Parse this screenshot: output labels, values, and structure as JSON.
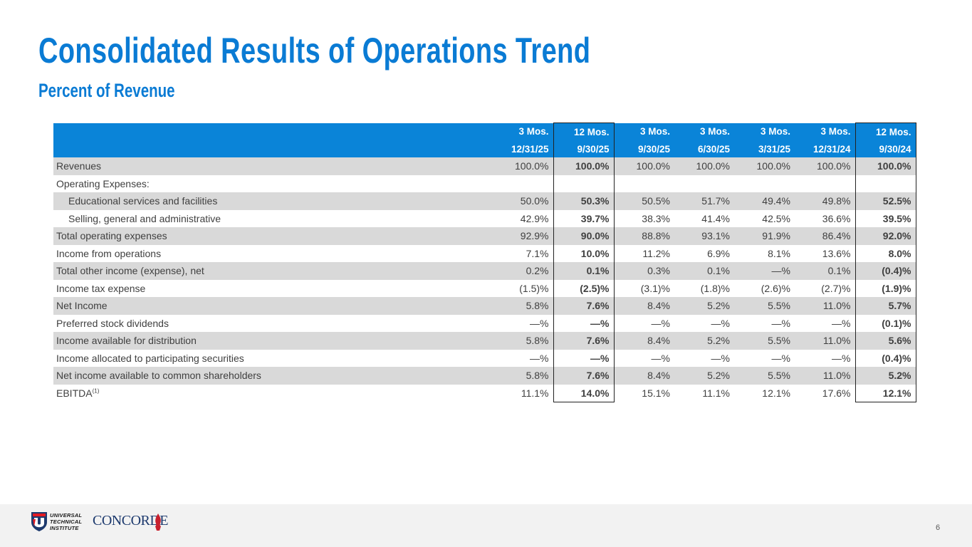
{
  "title": "Consolidated Results of Operations Trend",
  "subtitle": "Percent of Revenue",
  "table": {
    "header_row1": [
      "3 Mos.",
      "12 Mos.",
      "3 Mos.",
      "3 Mos.",
      "3 Mos.",
      "3 Mos.",
      "12 Mos."
    ],
    "header_row2": [
      "12/31/25",
      "9/30/25",
      "9/30/25",
      "6/30/25",
      "3/31/25",
      "12/31/24",
      "9/30/24"
    ],
    "rows": [
      {
        "label": "Revenues",
        "values": [
          "100.0%",
          "100.0%",
          "100.0%",
          "100.0%",
          "100.0%",
          "100.0%",
          "100.0%"
        ]
      },
      {
        "label": "Operating Expenses:",
        "values": [
          "",
          "",
          "",
          "",
          "",
          "",
          ""
        ]
      },
      {
        "label": "Educational services and facilities",
        "values": [
          "50.0%",
          "50.3%",
          "50.5%",
          "51.7%",
          "49.4%",
          "49.8%",
          "52.5%"
        ]
      },
      {
        "label": "Selling, general and administrative",
        "values": [
          "42.9%",
          "39.7%",
          "38.3%",
          "41.4%",
          "42.5%",
          "36.6%",
          "39.5%"
        ]
      },
      {
        "label": "Total operating expenses",
        "values": [
          "92.9%",
          "90.0%",
          "88.8%",
          "93.1%",
          "91.9%",
          "86.4%",
          "92.0%"
        ]
      },
      {
        "label": "Income from operations",
        "values": [
          "7.1%",
          "10.0%",
          "11.2%",
          "6.9%",
          "8.1%",
          "13.6%",
          "8.0%"
        ]
      },
      {
        "label": "Total other income (expense), net",
        "values": [
          "0.2%",
          "0.1%",
          "0.3%",
          "0.1%",
          "—%",
          "0.1%",
          "(0.4)%"
        ]
      },
      {
        "label": "Income tax expense",
        "values": [
          "(1.5)%",
          "(2.5)%",
          "(3.1)%",
          "(1.8)%",
          "(2.6)%",
          "(2.7)%",
          "(1.9)%"
        ]
      },
      {
        "label": "Net Income",
        "values": [
          "5.8%",
          "7.6%",
          "8.4%",
          "5.2%",
          "5.5%",
          "11.0%",
          "5.7%"
        ]
      },
      {
        "label": "Preferred stock dividends",
        "values": [
          "—%",
          "—%",
          "—%",
          "—%",
          "—%",
          "—%",
          "(0.1)%"
        ]
      },
      {
        "label": "Income available for distribution",
        "values": [
          "5.8%",
          "7.6%",
          "8.4%",
          "5.2%",
          "5.5%",
          "11.0%",
          "5.6%"
        ]
      },
      {
        "label": "Income allocated to participating securities",
        "values": [
          "—%",
          "—%",
          "—%",
          "—%",
          "—%",
          "—%",
          "(0.4)%"
        ]
      },
      {
        "label": "Net income available to common shareholders",
        "values": [
          "5.8%",
          "7.6%",
          "8.4%",
          "5.2%",
          "5.5%",
          "11.0%",
          "5.2%"
        ]
      },
      {
        "label": "EBITDA",
        "label_sup": "(1)",
        "values": [
          "11.1%",
          "14.0%",
          "15.1%",
          "11.1%",
          "12.1%",
          "17.6%",
          "12.1%"
        ]
      }
    ]
  },
  "footer": {
    "uti_logo_lines": [
      "UNIVERSAL",
      "TECHNICAL",
      "INSTITUTE"
    ],
    "concorde_logo": "CONCORDE",
    "page_number": "6"
  },
  "colors": {
    "accent": "#0a7bd4",
    "header_bg": "#0a84d8",
    "shade_row": "#d9d9d9",
    "footer_bg": "#f2f2f2"
  }
}
